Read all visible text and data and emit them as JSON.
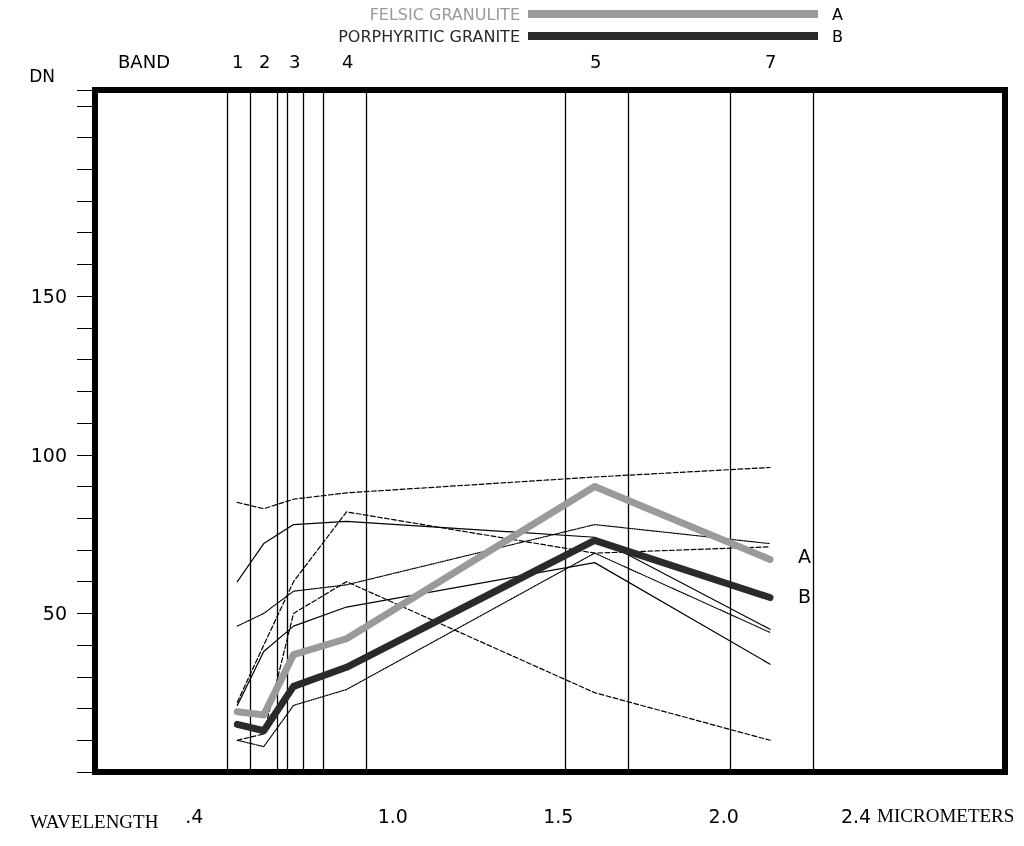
{
  "chart_data": {
    "type": "line",
    "xlabel": "MICROMETERS",
    "ylabel": "DN",
    "xlim": [
      0.1,
      2.85
    ],
    "xticks": [
      {
        "value": 0.4,
        "label": ".4"
      },
      {
        "value": 1,
        "label": "1.0"
      },
      1.5,
      {
        "value": 2,
        "label": "2.0"
      },
      2.4
    ],
    "ylim": [
      0,
      215
    ],
    "yticks": [
      50,
      100,
      150
    ],
    "x": [
      0.53,
      0.61,
      0.7,
      0.86,
      1.61,
      2.14
    ],
    "grid": false,
    "legend": "top",
    "marker": "none",
    "series": [
      {
        "color": "#000000",
        "line_style": "dashed",
        "values": [
          85,
          83,
          86,
          88,
          93,
          96
        ]
      },
      {
        "color": "#000000",
        "line_style": "solid",
        "values": [
          60,
          72,
          78,
          79,
          74,
          45
        ]
      },
      {
        "color": "#000000",
        "line_style": "dashed",
        "values": [
          22,
          40,
          60,
          82,
          69,
          71
        ]
      },
      {
        "color": "#000000",
        "line_style": "dotted",
        "values": [
          46,
          50,
          57,
          59,
          78,
          72
        ]
      },
      {
        "color": "#000000",
        "line_style": "solid",
        "values": [
          21,
          38,
          46,
          52,
          66,
          34
        ]
      },
      {
        "color": "#000000",
        "line_style": "dashed",
        "values": [
          10,
          12,
          50,
          60,
          25,
          10
        ]
      },
      {
        "color": "#000000",
        "line_style": "dotted",
        "values": [
          10,
          8,
          21,
          26,
          69,
          44
        ]
      },
      {
        "name": "FELSIC GRANULITE",
        "color": "#9a9a9a",
        "line_style": "solid",
        "values": [
          19,
          18,
          37,
          42,
          90,
          67
        ]
      },
      {
        "name": "PORPHYRITIC GRANITE",
        "color": "#2a2a2a",
        "line_style": "solid",
        "values": [
          15,
          13,
          27,
          33,
          73,
          55
        ]
      }
    ],
    "ref_lines": [
      {
        "axis": "x",
        "value": 0.5
      },
      {
        "axis": "x",
        "value": 0.57
      },
      {
        "axis": "x",
        "value": 0.65
      },
      {
        "axis": "x",
        "value": 0.68
      },
      {
        "axis": "x",
        "value": 0.73
      },
      {
        "axis": "x",
        "value": 0.79
      },
      {
        "axis": "x",
        "value": 0.92
      },
      {
        "axis": "x",
        "value": 1.52
      },
      {
        "axis": "x",
        "value": 1.71
      },
      {
        "axis": "x",
        "value": 2.02
      },
      {
        "axis": "x",
        "value": 2.27
      }
    ],
    "annotations": [
      "A",
      "B",
      "WAVELENGTH",
      "BAND",
      "1",
      "2",
      "3",
      "4",
      "5",
      "7"
    ]
  }
}
